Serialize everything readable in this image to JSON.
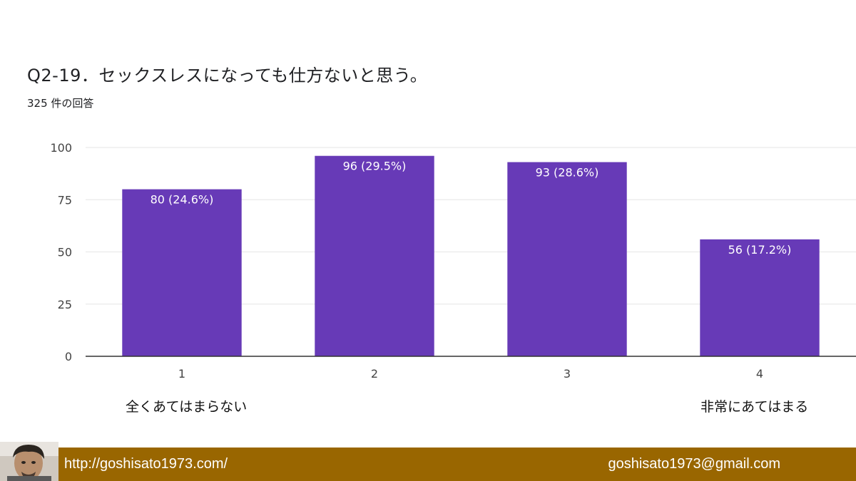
{
  "header": {
    "title": "Q2-19．セックスレスになっても仕方ないと思う。",
    "subtitle": "325 件の回答"
  },
  "scale_labels": {
    "low": "全くあてはまらない",
    "high": "非常にあてはまる"
  },
  "footer": {
    "url": "http://goshisato1973.com/",
    "email": "goshisato1973@gmail.com"
  },
  "colors": {
    "bar": "#673ab7",
    "footer": "#996600",
    "gridline": "#e6e6e6",
    "axis": "#333333"
  },
  "chart_data": {
    "type": "bar",
    "title": "Q2-19．セックスレスになっても仕方ないと思う。",
    "subtitle": "325 件の回答",
    "categories": [
      "1",
      "2",
      "3",
      "4"
    ],
    "values": [
      80,
      96,
      93,
      56
    ],
    "data_labels": [
      "80 (24.6%)",
      "96 (29.5%)",
      "93 (28.6%)",
      "56 (17.2%)"
    ],
    "yticks": [
      0,
      25,
      50,
      75,
      100
    ],
    "ylim": [
      0,
      100
    ],
    "grid": true,
    "legend": "none"
  }
}
